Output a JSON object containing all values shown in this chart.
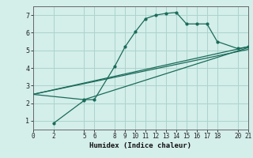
{
  "xlabel": "Humidex (Indice chaleur)",
  "ylabel": "",
  "bg_color": "#d4eeea",
  "grid_color": "#aad4cc",
  "line_color": "#1a6b5a",
  "xlim": [
    0,
    21
  ],
  "ylim": [
    0.5,
    7.5
  ],
  "xticks": [
    0,
    2,
    5,
    6,
    8,
    9,
    10,
    11,
    12,
    13,
    14,
    15,
    16,
    17,
    18,
    20,
    21
  ],
  "yticks": [
    1,
    2,
    3,
    4,
    5,
    6,
    7
  ],
  "main_line": {
    "x": [
      2,
      5,
      5,
      6,
      8,
      9,
      10,
      11,
      12,
      13,
      14,
      15,
      16,
      17,
      18,
      20,
      21
    ],
    "y": [
      0.85,
      2.15,
      2.2,
      2.2,
      4.1,
      5.2,
      6.05,
      6.8,
      7.0,
      7.1,
      7.15,
      6.5,
      6.5,
      6.5,
      5.5,
      5.1,
      5.2
    ]
  },
  "linear_lines": [
    {
      "x": [
        0,
        5,
        21
      ],
      "y": [
        2.5,
        2.2,
        5.15
      ]
    },
    {
      "x": [
        0,
        21
      ],
      "y": [
        2.5,
        5.2
      ]
    },
    {
      "x": [
        0,
        21
      ],
      "y": [
        2.5,
        5.05
      ]
    }
  ]
}
